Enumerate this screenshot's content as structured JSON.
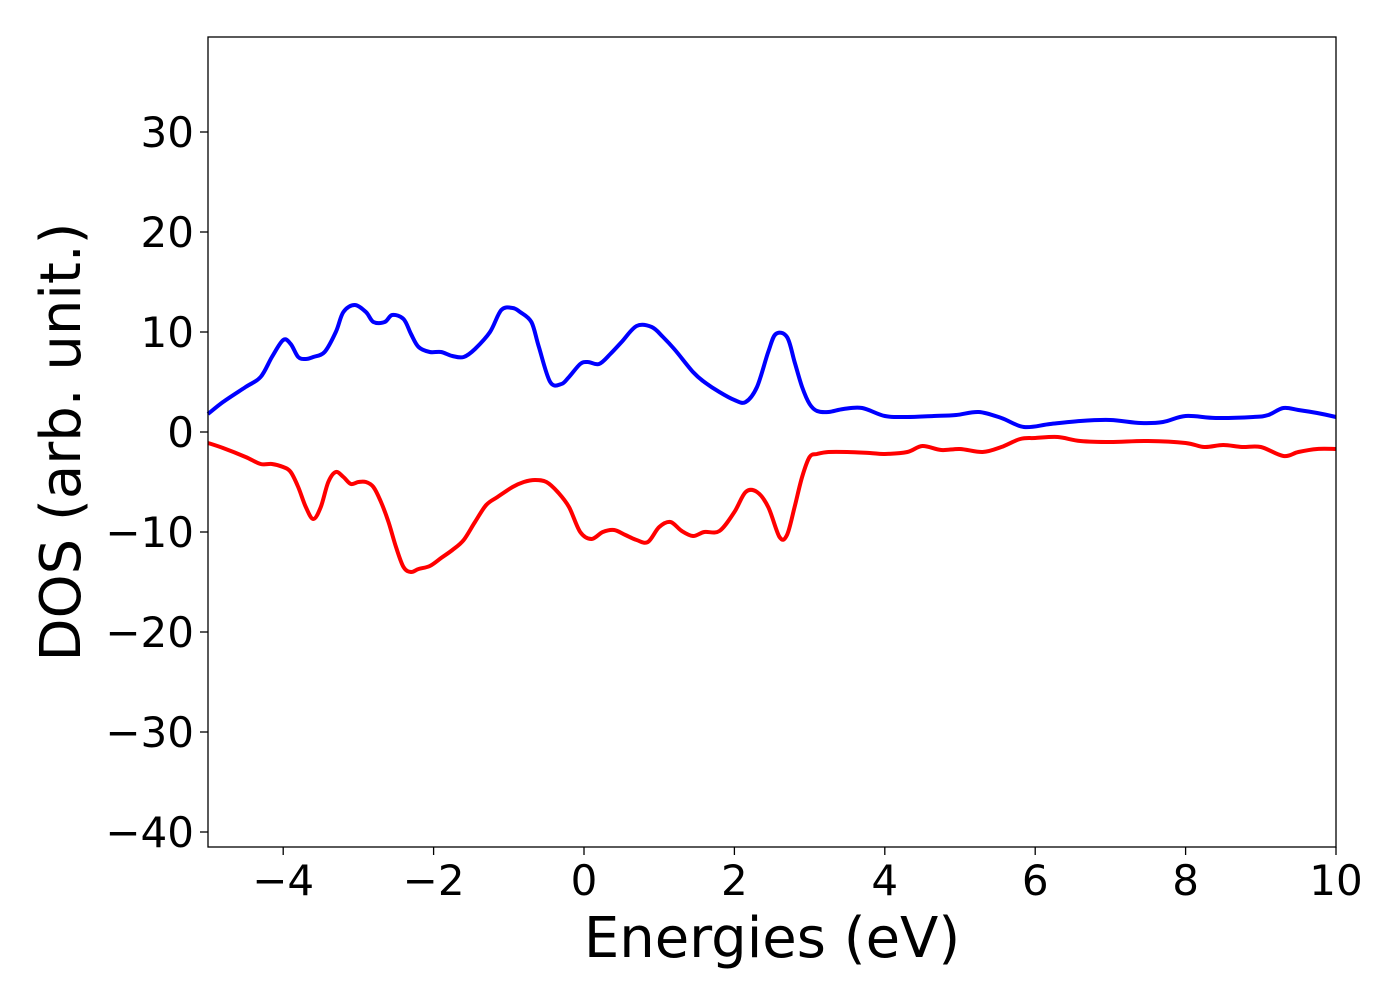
{
  "chart_data": {
    "type": "line",
    "title": "",
    "xlabel": "Energies (eV)",
    "ylabel": "DOS (arb. unit.)",
    "xlim": [
      -5,
      10
    ],
    "ylim": [
      -41.5,
      39.5
    ],
    "x_ticks": [
      -4,
      -2,
      0,
      2,
      4,
      6,
      8,
      10
    ],
    "y_ticks": [
      -40,
      -30,
      -20,
      -10,
      0,
      10,
      20,
      30
    ],
    "x_tick_labels": [
      "−4",
      "−2",
      "0",
      "2",
      "4",
      "6",
      "8",
      "10"
    ],
    "y_tick_labels": [
      "−40",
      "−30",
      "−20",
      "−10",
      "0",
      "10",
      "20",
      "30"
    ],
    "grid": false,
    "legend": "none",
    "series": [
      {
        "color": "#0000ff",
        "x": [
          -5.0,
          -4.8,
          -4.5,
          -4.3,
          -4.15,
          -4.0,
          -3.9,
          -3.8,
          -3.7,
          -3.6,
          -3.45,
          -3.3,
          -3.2,
          -3.05,
          -2.9,
          -2.8,
          -2.65,
          -2.55,
          -2.4,
          -2.3,
          -2.2,
          -2.05,
          -1.9,
          -1.75,
          -1.6,
          -1.45,
          -1.25,
          -1.1,
          -0.95,
          -0.85,
          -0.7,
          -0.6,
          -0.45,
          -0.3,
          -0.2,
          -0.05,
          0.05,
          0.2,
          0.35,
          0.5,
          0.7,
          0.9,
          1.05,
          1.2,
          1.45,
          1.6,
          1.8,
          2.0,
          2.15,
          2.3,
          2.45,
          2.55,
          2.7,
          2.8,
          2.9,
          3.0,
          3.1,
          3.25,
          3.45,
          3.7,
          4.0,
          4.3,
          4.65,
          4.95,
          5.25,
          5.55,
          5.85,
          6.2,
          6.6,
          7.0,
          7.4,
          7.7,
          8.0,
          8.4,
          8.9,
          9.1,
          9.3,
          9.5,
          9.75,
          10.0
        ],
        "y": [
          1.8,
          3.0,
          4.5,
          5.5,
          7.5,
          9.2,
          8.8,
          7.5,
          7.3,
          7.5,
          8.0,
          10.0,
          12.0,
          12.7,
          12.0,
          11.0,
          11.0,
          11.7,
          11.3,
          9.8,
          8.5,
          8.0,
          8.0,
          7.6,
          7.5,
          8.3,
          10.0,
          12.2,
          12.4,
          12.0,
          11.0,
          8.5,
          5.0,
          4.8,
          5.5,
          6.8,
          7.0,
          6.8,
          7.8,
          9.0,
          10.6,
          10.5,
          9.5,
          8.3,
          6.0,
          5.0,
          4.0,
          3.2,
          3.0,
          4.5,
          8.0,
          9.8,
          9.5,
          7.0,
          4.5,
          2.8,
          2.1,
          2.0,
          2.3,
          2.4,
          1.6,
          1.5,
          1.6,
          1.7,
          2.0,
          1.4,
          0.5,
          0.8,
          1.1,
          1.2,
          0.9,
          1.0,
          1.6,
          1.4,
          1.5,
          1.7,
          2.4,
          2.2,
          1.9,
          1.5
        ]
      },
      {
        "color": "#ff0000",
        "x": [
          -5.0,
          -4.8,
          -4.5,
          -4.3,
          -4.15,
          -4.0,
          -3.9,
          -3.8,
          -3.7,
          -3.6,
          -3.5,
          -3.4,
          -3.3,
          -3.2,
          -3.1,
          -3.0,
          -2.9,
          -2.8,
          -2.7,
          -2.6,
          -2.5,
          -2.4,
          -2.3,
          -2.2,
          -2.05,
          -1.9,
          -1.75,
          -1.6,
          -1.45,
          -1.3,
          -1.15,
          -0.95,
          -0.8,
          -0.65,
          -0.5,
          -0.35,
          -0.2,
          -0.05,
          0.1,
          0.25,
          0.4,
          0.55,
          0.7,
          0.85,
          1.0,
          1.15,
          1.3,
          1.45,
          1.6,
          1.8,
          2.0,
          2.15,
          2.3,
          2.45,
          2.6,
          2.7,
          2.8,
          2.9,
          3.0,
          3.1,
          3.25,
          3.5,
          3.8,
          4.0,
          4.3,
          4.5,
          4.75,
          5.0,
          5.3,
          5.55,
          5.8,
          6.0,
          6.3,
          6.6,
          7.0,
          7.5,
          8.0,
          8.25,
          8.5,
          8.75,
          9.0,
          9.3,
          9.5,
          9.75,
          10.0
        ],
        "y": [
          -1.1,
          -1.6,
          -2.5,
          -3.2,
          -3.2,
          -3.5,
          -4.0,
          -5.5,
          -7.5,
          -8.7,
          -7.5,
          -5.0,
          -4.0,
          -4.5,
          -5.2,
          -5.0,
          -5.0,
          -5.5,
          -7.0,
          -9.0,
          -11.5,
          -13.5,
          -14.0,
          -13.7,
          -13.4,
          -12.6,
          -11.8,
          -10.8,
          -9.0,
          -7.3,
          -6.5,
          -5.5,
          -5.0,
          -4.8,
          -5.0,
          -6.0,
          -7.5,
          -10.0,
          -10.7,
          -10.0,
          -9.8,
          -10.3,
          -10.8,
          -11.0,
          -9.5,
          -9.0,
          -9.9,
          -10.4,
          -10.0,
          -9.9,
          -8.0,
          -6.0,
          -6.0,
          -7.5,
          -10.5,
          -10.3,
          -7.5,
          -4.5,
          -2.5,
          -2.2,
          -2.0,
          -2.0,
          -2.1,
          -2.2,
          -2.0,
          -1.4,
          -1.8,
          -1.7,
          -2.0,
          -1.5,
          -0.7,
          -0.6,
          -0.5,
          -0.9,
          -1.0,
          -0.9,
          -1.1,
          -1.5,
          -1.3,
          -1.5,
          -1.5,
          -2.4,
          -2.0,
          -1.7,
          -1.7
        ]
      }
    ]
  }
}
